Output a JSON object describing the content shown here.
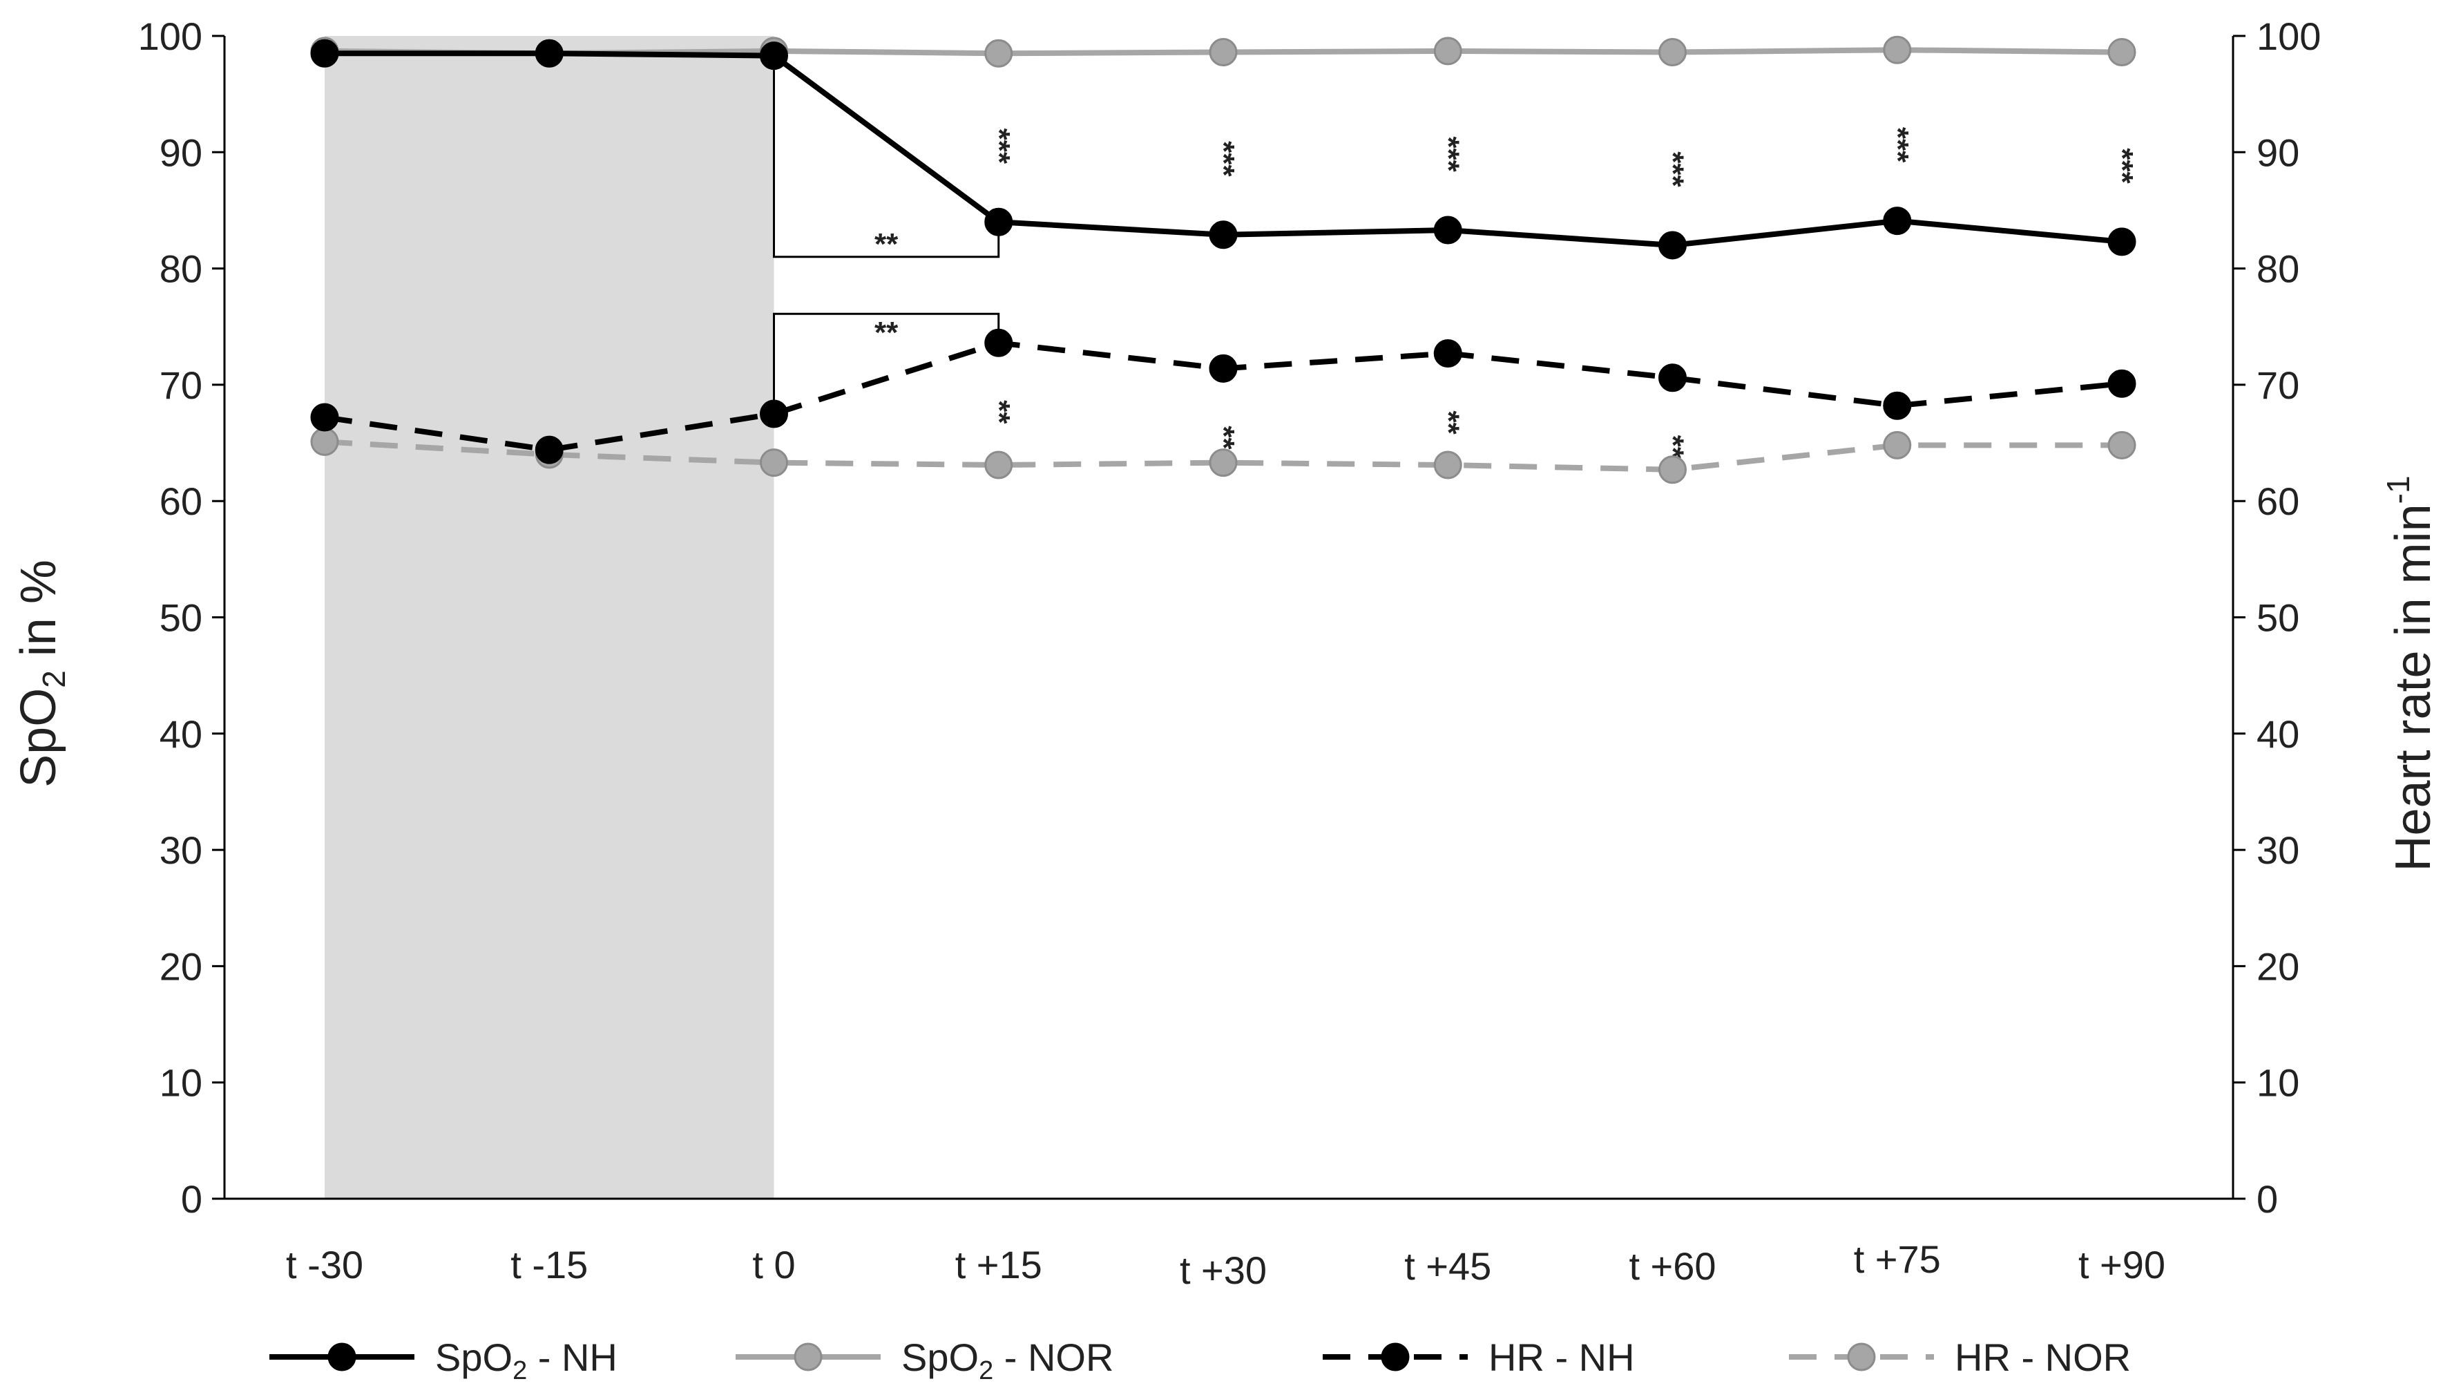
{
  "chart_data": {
    "type": "line",
    "categories": [
      "t -30",
      "t -15",
      "t 0",
      "t +15",
      "t +30",
      "t +45",
      "t +60",
      "t +75",
      "t +90"
    ],
    "ylabel_left": "SpO2 in %",
    "ylabel_right": "Heart rate in min-1",
    "ylim_left": [
      0,
      100
    ],
    "ylim_right": [
      0,
      100
    ],
    "y_ticks": [
      "0",
      "10",
      "20",
      "30",
      "40",
      "50",
      "60",
      "70",
      "80",
      "90",
      "100"
    ],
    "grid": false,
    "shaded_region": {
      "from": "t -30",
      "to": "t 0",
      "color": "#dcdbdc"
    },
    "legend_position": "bottom",
    "series": [
      {
        "name": "SpO2 - NH",
        "axis": "left",
        "style": "solid",
        "color": "#000000",
        "marker_color": "#000000",
        "values": [
          98.5,
          98.5,
          98.3,
          84.0,
          82.9,
          83.3,
          82.0,
          84.1,
          82.3
        ]
      },
      {
        "name": "SpO2 - NOR",
        "axis": "left",
        "style": "solid",
        "color": "#a6a6a6",
        "marker_color": "#a6a6a6",
        "values": [
          98.7,
          98.5,
          98.7,
          98.5,
          98.6,
          98.7,
          98.6,
          98.8,
          98.6
        ]
      },
      {
        "name": "HR - NH",
        "axis": "right",
        "style": "dashed",
        "color": "#000000",
        "marker_color": "#000000",
        "values": [
          67.2,
          64.4,
          67.5,
          73.6,
          71.4,
          72.7,
          70.6,
          68.2,
          70.1
        ]
      },
      {
        "name": "HR - NOR",
        "axis": "right",
        "style": "dashed",
        "color": "#a6a6a6",
        "marker_color": "#a6a6a6",
        "values": [
          65.1,
          64.0,
          63.3,
          63.1,
          63.3,
          63.1,
          62.7,
          64.8,
          64.8
        ]
      }
    ],
    "annotations": [
      {
        "text": "**",
        "kind": "bracket",
        "series": "SpO2 - NH",
        "from": "t 0",
        "to": "t +15",
        "placement": "below"
      },
      {
        "text": "**",
        "kind": "bracket",
        "series": "HR - NH",
        "from": "t 0",
        "to": "t +15",
        "placement": "above"
      },
      {
        "text": "***",
        "kind": "vertical",
        "category": "t +15",
        "series": "SpO2 - NH"
      },
      {
        "text": "***",
        "kind": "vertical",
        "category": "t +30",
        "series": "SpO2 - NH"
      },
      {
        "text": "***",
        "kind": "vertical",
        "category": "t +45",
        "series": "SpO2 - NH"
      },
      {
        "text": "***",
        "kind": "vertical",
        "category": "t +60",
        "series": "SpO2 - NH"
      },
      {
        "text": "***",
        "kind": "vertical",
        "category": "t +75",
        "series": "SpO2 - NH"
      },
      {
        "text": "***",
        "kind": "vertical",
        "category": "t +90",
        "series": "SpO2 - NH"
      },
      {
        "text": "**",
        "kind": "vertical",
        "category": "t +15",
        "series": "HR - NH"
      },
      {
        "text": "**",
        "kind": "vertical",
        "category": "t +30",
        "series": "HR - NH"
      },
      {
        "text": "**",
        "kind": "vertical",
        "category": "t +45",
        "series": "HR - NH"
      },
      {
        "text": "**",
        "kind": "vertical",
        "category": "t +60",
        "series": "HR - NH"
      }
    ]
  }
}
